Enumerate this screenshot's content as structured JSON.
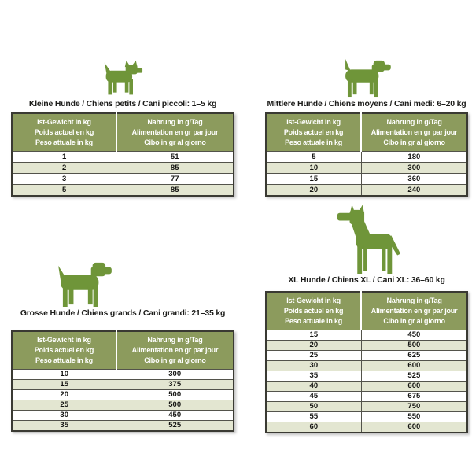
{
  "page": {
    "background": "#ffffff"
  },
  "colors": {
    "header_bg": "#8C9B5D",
    "header_text": "#ffffff",
    "row_alt_bg": "#E3E6D1",
    "table_border": "#3a3a33",
    "dog_green": "#6F9539",
    "title_text": "#1d1d1b"
  },
  "table_header": {
    "weight": [
      "Ist-Gewicht in kg",
      "Poids actuel en kg",
      "Peso attuale in kg"
    ],
    "food": [
      "Nahrung in g/Tag",
      "Alimentation en gr par jour",
      "Cibo in gr al giorno"
    ]
  },
  "sections": [
    {
      "id": "small",
      "title": "Kleine Hunde / Chiens petits / Cani piccoli: 1–5 kg",
      "icon": "small-dog-icon",
      "rows": [
        [
          "1",
          "51"
        ],
        [
          "2",
          "85"
        ],
        [
          "3",
          "77"
        ],
        [
          "5",
          "85"
        ]
      ]
    },
    {
      "id": "medium",
      "title": "Mittlere Hunde / Chiens moyens / Cani medi: 6–20 kg",
      "icon": "medium-dog-icon",
      "rows": [
        [
          "5",
          "180"
        ],
        [
          "10",
          "300"
        ],
        [
          "15",
          "360"
        ],
        [
          "20",
          "240"
        ]
      ]
    },
    {
      "id": "large",
      "title": "Grosse Hunde / Chiens grands / Cani grandi: 21–35 kg",
      "icon": "large-dog-icon",
      "rows": [
        [
          "10",
          "300"
        ],
        [
          "15",
          "375"
        ],
        [
          "20",
          "500"
        ],
        [
          "25",
          "500"
        ],
        [
          "30",
          "450"
        ],
        [
          "35",
          "525"
        ]
      ]
    },
    {
      "id": "xl",
      "title": "XL Hunde / Chiens XL / Cani XL: 36–60 kg",
      "icon": "xl-dog-icon",
      "rows": [
        [
          "15",
          "450"
        ],
        [
          "20",
          "500"
        ],
        [
          "25",
          "625"
        ],
        [
          "30",
          "600"
        ],
        [
          "35",
          "525"
        ],
        [
          "40",
          "600"
        ],
        [
          "45",
          "675"
        ],
        [
          "50",
          "750"
        ],
        [
          "55",
          "550"
        ],
        [
          "60",
          "600"
        ]
      ]
    }
  ],
  "chart_data": [
    {
      "type": "table",
      "title": "Kleine Hunde / Chiens petits / Cani piccoli: 1–5 kg",
      "columns": [
        "Ist-Gewicht in kg / Poids actuel en kg / Peso attuale in kg",
        "Nahrung in g/Tag / Alimentation en gr par jour / Cibo in gr al giorno"
      ],
      "x": [
        1,
        2,
        3,
        5
      ],
      "values": [
        51,
        85,
        77,
        85
      ]
    },
    {
      "type": "table",
      "title": "Mittlere Hunde / Chiens moyens / Cani medi: 6–20 kg",
      "columns": [
        "Ist-Gewicht in kg / Poids actuel en kg / Peso attuale in kg",
        "Nahrung in g/Tag / Alimentation en gr par jour / Cibo in gr al giorno"
      ],
      "x": [
        5,
        10,
        15,
        20
      ],
      "values": [
        180,
        300,
        360,
        240
      ]
    },
    {
      "type": "table",
      "title": "Grosse Hunde / Chiens grands / Cani grandi: 21–35 kg",
      "columns": [
        "Ist-Gewicht in kg / Poids actuel en kg / Peso attuale in kg",
        "Nahrung in g/Tag / Alimentation en gr par jour / Cibo in gr al giorno"
      ],
      "x": [
        10,
        15,
        20,
        25,
        30,
        35
      ],
      "values": [
        300,
        375,
        500,
        500,
        450,
        525
      ]
    },
    {
      "type": "table",
      "title": "XL Hunde / Chiens XL / Cani XL: 36–60 kg",
      "columns": [
        "Ist-Gewicht in kg / Poids actuel en kg / Peso attuale in kg",
        "Nahrung in g/Tag / Alimentation en gr par jour / Cibo in gr al giorno"
      ],
      "x": [
        15,
        20,
        25,
        30,
        35,
        40,
        45,
        50,
        55,
        60
      ],
      "values": [
        450,
        500,
        625,
        600,
        525,
        600,
        675,
        750,
        550,
        600
      ]
    }
  ]
}
